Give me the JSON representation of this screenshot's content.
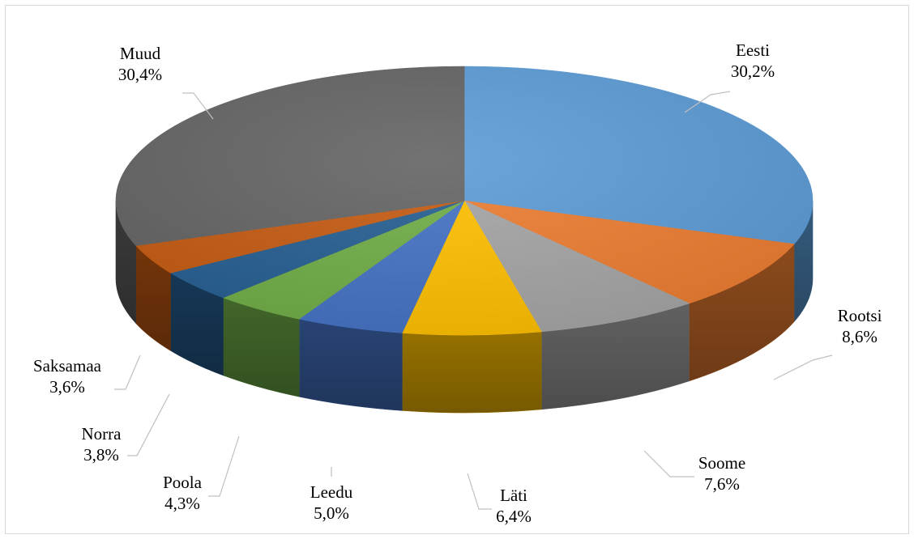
{
  "chart_data": {
    "type": "pie",
    "style": "3d",
    "categories": [
      "Eesti",
      "Rootsi",
      "Soome",
      "Läti",
      "Leedu",
      "Poola",
      "Norra",
      "Saksamaa",
      "Muud"
    ],
    "values": [
      30.2,
      8.6,
      7.6,
      6.4,
      5.0,
      4.3,
      3.8,
      3.6,
      30.4
    ],
    "value_labels": [
      "30,2%",
      "8,6%",
      "7,6%",
      "6,4%",
      "5,0%",
      "4,3%",
      "3,8%",
      "3,6%",
      "30,4%"
    ],
    "colors": [
      "#5b9bd5",
      "#ed7d31",
      "#a5a5a5",
      "#ffc000",
      "#4472c4",
      "#70ad47",
      "#255e91",
      "#c55a11",
      "#636363"
    ],
    "title": "",
    "legend": "none"
  }
}
